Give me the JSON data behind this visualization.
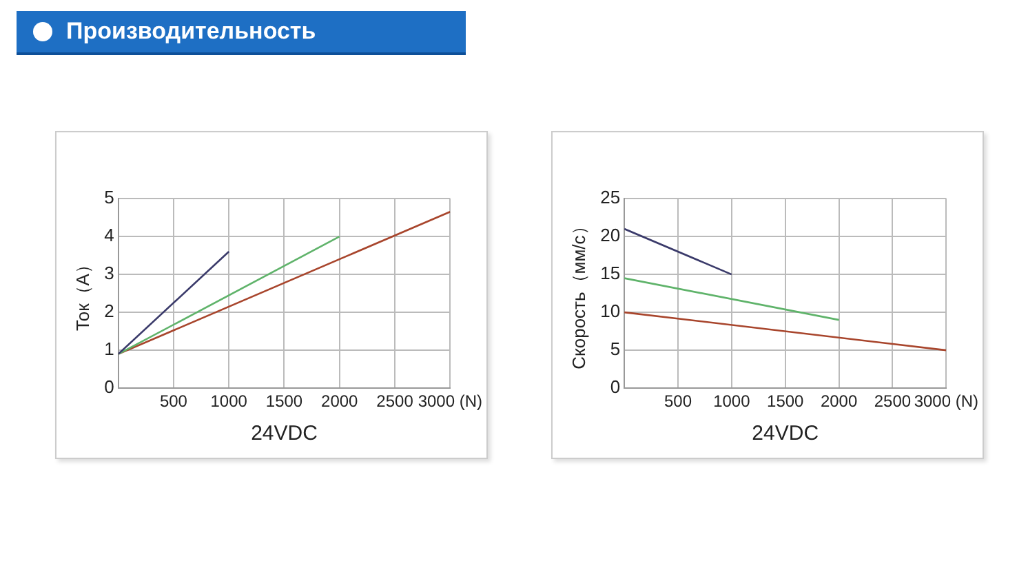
{
  "chart_data": [
    {
      "type": "line",
      "title": "Производительность",
      "xlabel": "24VDC",
      "ylabel": "Ток（A）",
      "xlim": [
        0,
        3000
      ],
      "ylim": [
        0,
        5
      ],
      "xticks": [
        500,
        1000,
        1500,
        2000,
        2500,
        {
          "value": 3000,
          "label": "3000 (N)"
        }
      ],
      "yticks": [
        0,
        1,
        2,
        3,
        4,
        5
      ],
      "grid": true,
      "legend": false,
      "marker": "none",
      "series": [
        {
          "color": "#3a3a6a",
          "x": [
            0,
            1000
          ],
          "values": [
            0.9,
            3.6
          ]
        },
        {
          "color": "#5fb36a",
          "x": [
            0,
            2000
          ],
          "values": [
            0.9,
            4
          ]
        },
        {
          "color": "#a8452c",
          "x": [
            0,
            3000
          ],
          "values": [
            0.9,
            4.65
          ]
        }
      ]
    },
    {
      "type": "line",
      "xlabel": "24VDC",
      "ylabel": "Скорость（мм/с）",
      "xlim": [
        0,
        3000
      ],
      "ylim": [
        0,
        25
      ],
      "xticks": [
        500,
        1000,
        1500,
        2000,
        2500,
        {
          "value": 3000,
          "label": "3000 (N)"
        }
      ],
      "yticks": [
        0,
        5,
        10,
        15,
        20,
        25
      ],
      "grid": true,
      "legend": false,
      "marker": "none",
      "series": [
        {
          "color": "#3a3a6a",
          "x": [
            0,
            1000
          ],
          "values": [
            21,
            15
          ]
        },
        {
          "color": "#5fb36a",
          "x": [
            0,
            2000
          ],
          "values": [
            14.5,
            9
          ]
        },
        {
          "color": "#a8452c",
          "x": [
            0,
            3000
          ],
          "values": [
            10,
            5
          ]
        }
      ]
    }
  ]
}
